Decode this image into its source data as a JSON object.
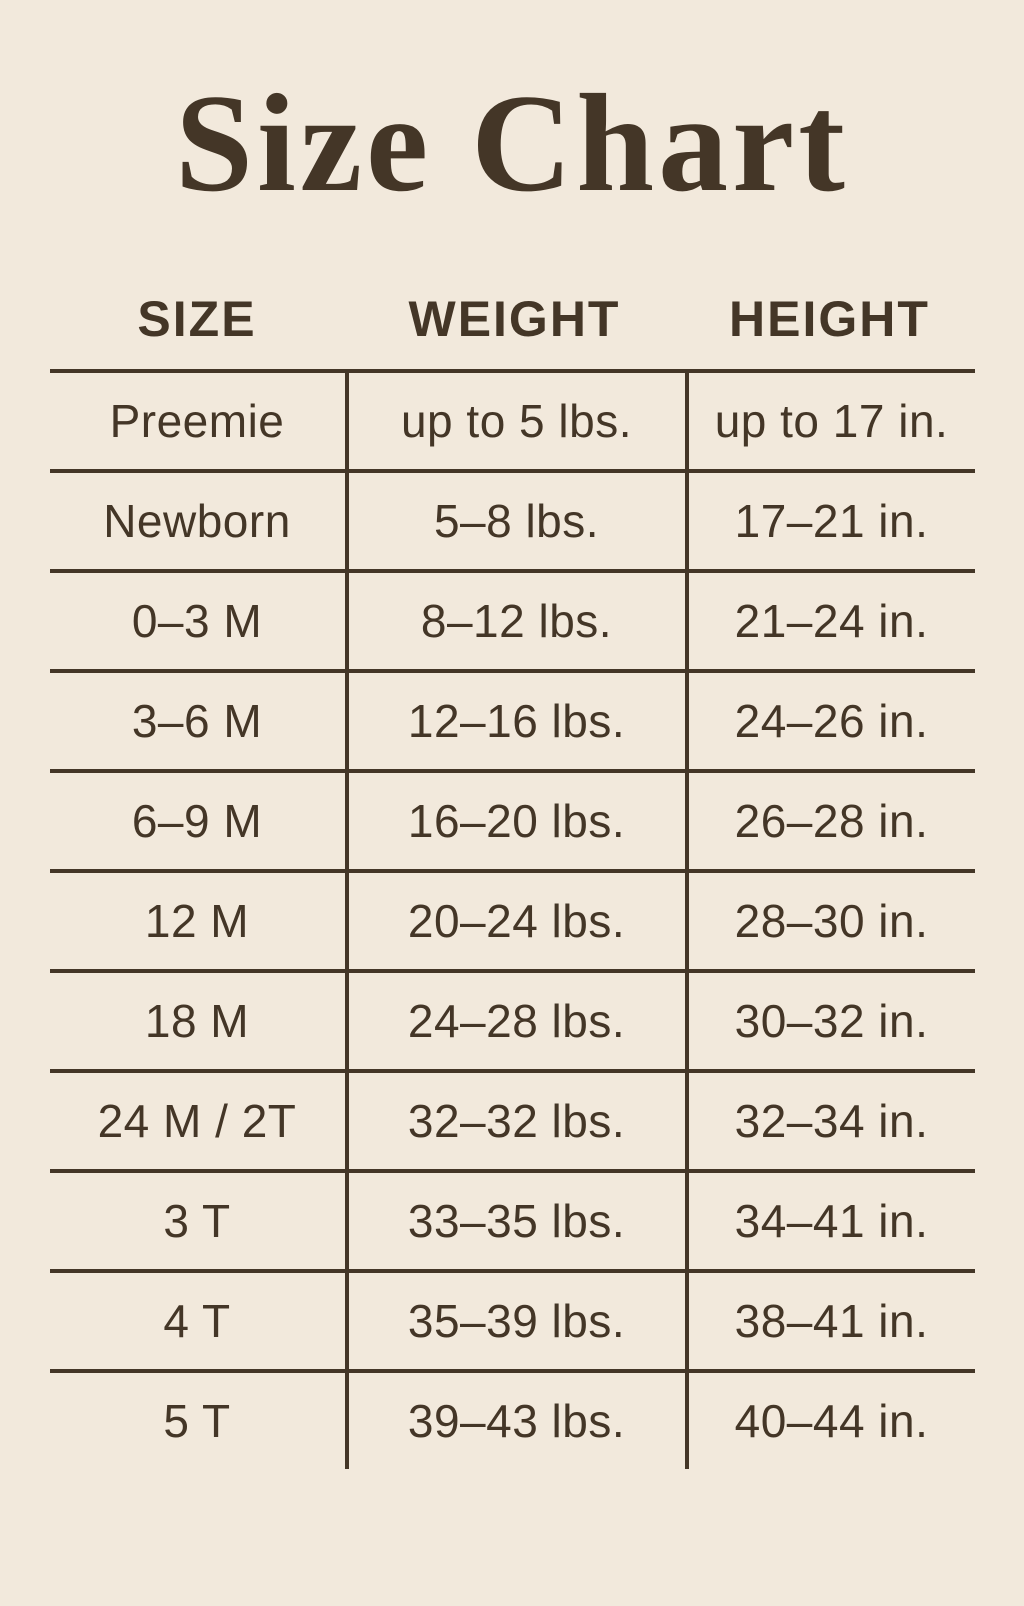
{
  "title": "Size Chart",
  "colors": {
    "background": "#f2e9dc",
    "ink": "#443627"
  },
  "chart_data": {
    "type": "table",
    "title": "Size Chart",
    "columns": [
      "SIZE",
      "WEIGHT",
      "HEIGHT"
    ],
    "rows": [
      [
        "Preemie",
        "up to 5 lbs.",
        "up to 17 in."
      ],
      [
        "Newborn",
        "5–8 lbs.",
        "17–21 in."
      ],
      [
        "0–3 M",
        "8–12 lbs.",
        "21–24 in."
      ],
      [
        "3–6 M",
        "12–16 lbs.",
        "24–26 in."
      ],
      [
        "6–9 M",
        "16–20 lbs.",
        "26–28 in."
      ],
      [
        "12 M",
        "20–24 lbs.",
        "28–30 in."
      ],
      [
        "18 M",
        "24–28 lbs.",
        "30–32 in."
      ],
      [
        "24 M / 2T",
        "32–32 lbs.",
        "32–34 in."
      ],
      [
        "3 T",
        "33–35 lbs.",
        "34–41 in."
      ],
      [
        "4 T",
        "35–39 lbs.",
        "38–41 in."
      ],
      [
        "5 T",
        "39–43 lbs.",
        "40–44 in."
      ]
    ],
    "layout": {
      "grid": "horizontal rules between rows, vertical dividers between columns, no outer border, no bottom rule",
      "legend": "none"
    }
  }
}
